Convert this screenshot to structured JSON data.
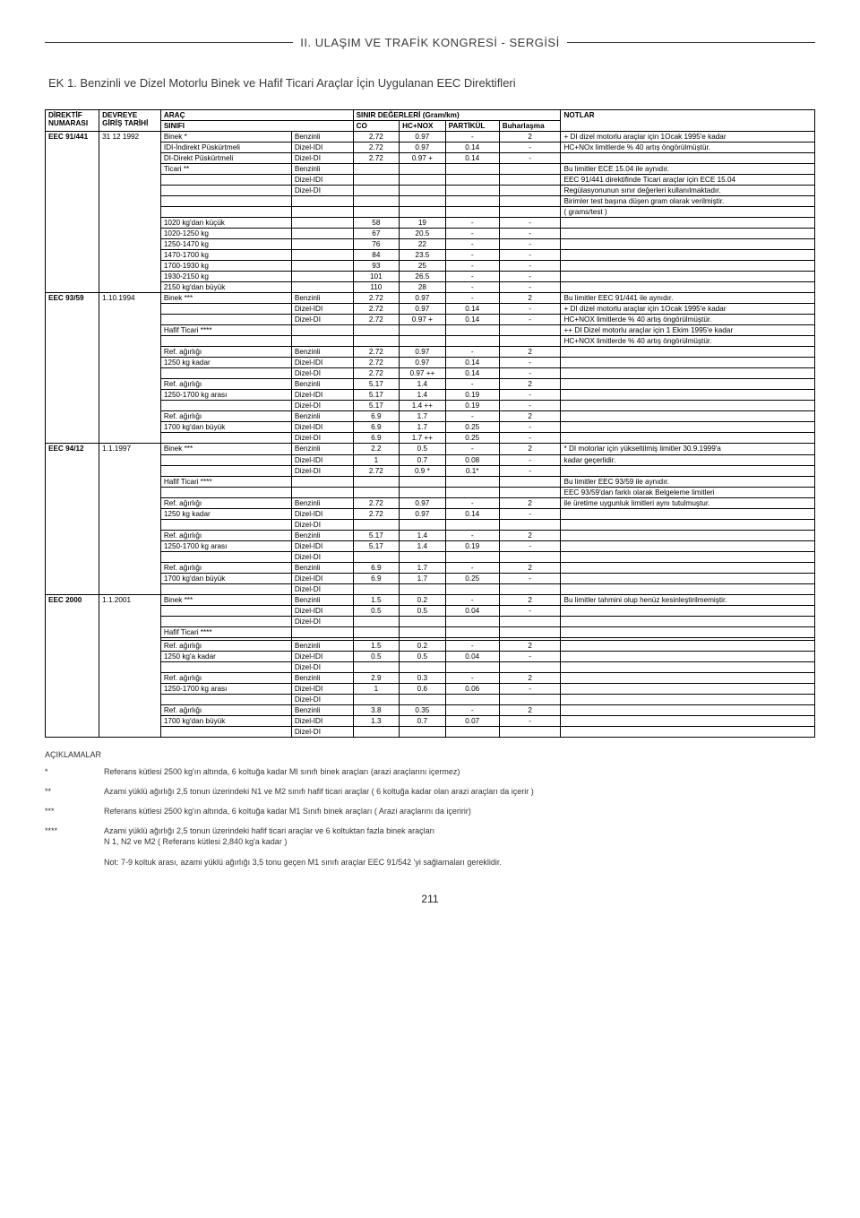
{
  "header": {
    "main": "II. ULAŞIM VE TRAFİK KONGRESİ - SERGİSİ"
  },
  "ek_title": "EK 1. Benzinli ve Dizel Motorlu Binek ve Hafif Ticari Araçlar İçin Uygulanan EEC Direktifleri",
  "columns": {
    "direktif": "DİREKTİF NUMARASI",
    "devreye": "DEVREYE GİRİŞ TARİHİ",
    "arac_sinifi_top": "ARAÇ",
    "arac_sinifi_bot": "SINIFI",
    "sinir_top": "SINIR DEĞERLERİ (Gram/km)",
    "co": "CO",
    "hcnox": "HC+NOX",
    "partikul": "PARTİKÜL",
    "buharlasma": "Buharlaşma",
    "notlar": "NOTLAR"
  },
  "blocks": [
    {
      "direktif": "EEC 91/441",
      "tarih": "31 12 1992",
      "rows": [
        {
          "sinif": "Binek *",
          "fuel": "Benzinli",
          "co": "2.72",
          "hcnox": "0.97",
          "part": "-",
          "buh": "2",
          "not": "+ DI dizel motorlu araçlar için 1Ocak 1995'e kadar"
        },
        {
          "sinif": "IDI-İndirekt Püskürtmeli",
          "fuel": "Dizel-IDI",
          "co": "2.72",
          "hcnox": "0.97",
          "part": "0.14",
          "buh": "-",
          "not": "HC+NOx limitlerde % 40 artış öngörülmüştür."
        },
        {
          "sinif": "DI-Direkt Püskürtmeli",
          "fuel": "Dizel-DI",
          "co": "2.72",
          "hcnox": "0.97 +",
          "part": "0.14",
          "buh": "-",
          "not": ""
        },
        {
          "sinif": "Ticari **",
          "fuel": "Benzinli",
          "co": "",
          "hcnox": "",
          "part": "",
          "buh": "",
          "not": "Bu limitler ECE 15.04 ile aynıdır."
        },
        {
          "sinif": "",
          "fuel": "Dizel-IDI",
          "co": "",
          "hcnox": "",
          "part": "",
          "buh": "",
          "not": "EEC 91/441 direktifinde Ticari araçlar için ECE 15.04"
        },
        {
          "sinif": "",
          "fuel": "Dizel-DI",
          "co": "",
          "hcnox": "",
          "part": "",
          "buh": "",
          "not": "Regülasyonunun sınır değerleri kullanılmaktadır."
        },
        {
          "sinif": "",
          "fuel": "",
          "co": "",
          "hcnox": "",
          "part": "",
          "buh": "",
          "not": "Birimler test başına düşen gram olarak verilmiştir."
        },
        {
          "sinif": "",
          "fuel": "",
          "co": "",
          "hcnox": "",
          "part": "",
          "buh": "",
          "not": "( grams/test )"
        },
        {
          "sinif": "1020 kg'dan küçük",
          "fuel": "",
          "co": "58",
          "hcnox": "19",
          "part": "-",
          "buh": "-",
          "not": ""
        },
        {
          "sinif": "1020-1250 kg",
          "fuel": "",
          "co": "67",
          "hcnox": "20.5",
          "part": "-",
          "buh": "-",
          "not": ""
        },
        {
          "sinif": "1250-1470 kg",
          "fuel": "",
          "co": "76",
          "hcnox": "22",
          "part": "-",
          "buh": "-",
          "not": ""
        },
        {
          "sinif": "1470-1700 kg",
          "fuel": "",
          "co": "84",
          "hcnox": "23.5",
          "part": "-",
          "buh": "-",
          "not": ""
        },
        {
          "sinif": "1700-1930 kg",
          "fuel": "",
          "co": "93",
          "hcnox": "25",
          "part": "-",
          "buh": "-",
          "not": ""
        },
        {
          "sinif": "1930-2150 kg",
          "fuel": "",
          "co": "101",
          "hcnox": "26.5",
          "part": "-",
          "buh": "-",
          "not": ""
        },
        {
          "sinif": "2150 kg'dan büyük",
          "fuel": "",
          "co": "110",
          "hcnox": "28",
          "part": "-",
          "buh": "-",
          "not": ""
        }
      ]
    },
    {
      "direktif": "EEC 93/59",
      "tarih": "1.10.1994",
      "rows": [
        {
          "sinif": "Binek ***",
          "fuel": "Benzinli",
          "co": "2.72",
          "hcnox": "0.97",
          "part": "-",
          "buh": "2",
          "not": "Bu limitler EEC 91/441 ile aynıdır."
        },
        {
          "sinif": "",
          "fuel": "Dizel-IDI",
          "co": "2.72",
          "hcnox": "0.97",
          "part": "0.14",
          "buh": "-",
          "not": "+ DI dizel motorlu araçlar için 1Ocak 1995'e kadar"
        },
        {
          "sinif": "",
          "fuel": "Dizel-DI",
          "co": "2.72",
          "hcnox": "0.97 +",
          "part": "0.14",
          "buh": "-",
          "not": "HC+NOX limitlerde % 40 artış öngörülmüştür."
        },
        {
          "sinif": "Hafif Ticari ****",
          "fuel": "",
          "co": "",
          "hcnox": "",
          "part": "",
          "buh": "",
          "not": "++ DI Dizel motorlu araçlar için 1 Ekim 1995'e kadar"
        },
        {
          "sinif": "",
          "fuel": "",
          "co": "",
          "hcnox": "",
          "part": "",
          "buh": "",
          "not": "HC+NOX limitlerde % 40 artış öngörülmüştür."
        },
        {
          "sinif": "Ref. ağırlığı",
          "fuel": "Benzinli",
          "co": "2.72",
          "hcnox": "0.97",
          "part": "-",
          "buh": "2",
          "not": ""
        },
        {
          "sinif": "1250 kg kadar",
          "fuel": "Dizel-IDI",
          "co": "2.72",
          "hcnox": "0.97",
          "part": "0.14",
          "buh": "-",
          "not": ""
        },
        {
          "sinif": "",
          "fuel": "Dizel-DI",
          "co": "2.72",
          "hcnox": "0.97 ++",
          "part": "0.14",
          "buh": "-",
          "not": ""
        },
        {
          "sinif": "Ref. ağırlığı",
          "fuel": "Benzinli",
          "co": "5.17",
          "hcnox": "1.4",
          "part": "-",
          "buh": "2",
          "not": ""
        },
        {
          "sinif": "1250-1700 kg arası",
          "fuel": "Dizel-IDI",
          "co": "5.17",
          "hcnox": "1.4",
          "part": "0.19",
          "buh": "-",
          "not": ""
        },
        {
          "sinif": "",
          "fuel": "Dizel-DI",
          "co": "5.17",
          "hcnox": "1.4 ++",
          "part": "0.19",
          "buh": "-",
          "not": ""
        },
        {
          "sinif": "Ref. ağırlığı",
          "fuel": "Benzinli",
          "co": "6.9",
          "hcnox": "1.7",
          "part": "-",
          "buh": "2",
          "not": ""
        },
        {
          "sinif": "1700 kg'dan büyük",
          "fuel": "Dizel-IDI",
          "co": "6.9",
          "hcnox": "1.7",
          "part": "0.25",
          "buh": "-",
          "not": ""
        },
        {
          "sinif": "",
          "fuel": "Dizel-DI",
          "co": "6.9",
          "hcnox": "1.7 ++",
          "part": "0.25",
          "buh": "-",
          "not": ""
        }
      ]
    },
    {
      "direktif": "EEC 94/12",
      "tarih": "1.1.1997",
      "rows": [
        {
          "sinif": "Binek ***",
          "fuel": "Benzinli",
          "co": "2.2",
          "hcnox": "0.5",
          "part": "-",
          "buh": "2",
          "not": "* DI motorlar için yükseltilmiş limitler 30.9.1999'a"
        },
        {
          "sinif": "",
          "fuel": "Dizel-IDI",
          "co": "1",
          "hcnox": "0.7",
          "part": "0.08",
          "buh": "-",
          "not": "kadar geçerlidir."
        },
        {
          "sinif": "",
          "fuel": "Dizel-DI",
          "co": "2.72",
          "hcnox": "0.9 *",
          "part": "0.1*",
          "buh": "-",
          "not": ""
        },
        {
          "sinif": "Hafif Ticari ****",
          "fuel": "",
          "co": "",
          "hcnox": "",
          "part": "",
          "buh": "",
          "not": "Bu limitler EEC 93/59 ile aynıdır."
        },
        {
          "sinif": "",
          "fuel": "",
          "co": "",
          "hcnox": "",
          "part": "",
          "buh": "",
          "not": "EEC 93/59'dan farklı olarak Belgeleme limitleri"
        },
        {
          "sinif": "Ref. ağırlığı",
          "fuel": "Benzinli",
          "co": "2.72",
          "hcnox": "0.97",
          "part": "-",
          "buh": "2",
          "not": "ile üretime uygunluk limitleri aynı tutulmuştur."
        },
        {
          "sinif": "1250 kg kadar",
          "fuel": "Dizel-IDI",
          "co": "2.72",
          "hcnox": "0.97",
          "part": "0.14",
          "buh": "-",
          "not": ""
        },
        {
          "sinif": "",
          "fuel": "Dizel-DI",
          "co": "",
          "hcnox": "",
          "part": "",
          "buh": "",
          "not": ""
        },
        {
          "sinif": "Ref. ağırlığı",
          "fuel": "Benzinli",
          "co": "5.17",
          "hcnox": "1.4",
          "part": "-",
          "buh": "2",
          "not": ""
        },
        {
          "sinif": "1250-1700 kg arası",
          "fuel": "Dizel-IDI",
          "co": "5.17",
          "hcnox": "1.4",
          "part": "0.19",
          "buh": "-",
          "not": ""
        },
        {
          "sinif": "",
          "fuel": "Dizel-DI",
          "co": "",
          "hcnox": "",
          "part": "",
          "buh": "",
          "not": ""
        },
        {
          "sinif": "Ref. ağırlığı",
          "fuel": "Benzinli",
          "co": "6.9",
          "hcnox": "1.7",
          "part": "-",
          "buh": "2",
          "not": ""
        },
        {
          "sinif": "1700 kg'dan büyük",
          "fuel": "Dizel-IDI",
          "co": "6.9",
          "hcnox": "1.7",
          "part": "0.25",
          "buh": "-",
          "not": ""
        },
        {
          "sinif": "",
          "fuel": "Dizel-DI",
          "co": "",
          "hcnox": "",
          "part": "",
          "buh": "",
          "not": ""
        }
      ]
    },
    {
      "direktif": "EEC 2000",
      "tarih": "1.1.2001",
      "rows": [
        {
          "sinif": "Binek ***",
          "fuel": "Benzinli",
          "co": "1.5",
          "hcnox": "0.2",
          "part": "-",
          "buh": "2",
          "not": "Bu limitler tahmini olup henüz kesinleştirilmemiştir."
        },
        {
          "sinif": "",
          "fuel": "Dizel-IDI",
          "co": "0.5",
          "hcnox": "0.5",
          "part": "0.04",
          "buh": "-",
          "not": ""
        },
        {
          "sinif": "",
          "fuel": "Dizel-DI",
          "co": "",
          "hcnox": "",
          "part": "",
          "buh": "",
          "not": ""
        },
        {
          "sinif": "Hafif Ticari ****",
          "fuel": "",
          "co": "",
          "hcnox": "",
          "part": "",
          "buh": "",
          "not": ""
        },
        {
          "sinif": "",
          "fuel": "",
          "co": "",
          "hcnox": "",
          "part": "",
          "buh": "",
          "not": ""
        },
        {
          "sinif": "Ref. ağırlığı",
          "fuel": "Benzinli",
          "co": "1.5",
          "hcnox": "0.2",
          "part": "-",
          "buh": "2",
          "not": ""
        },
        {
          "sinif": "1250 kg'a kadar",
          "fuel": "Dizel-IDI",
          "co": "0.5",
          "hcnox": "0.5",
          "part": "0.04",
          "buh": "-",
          "not": ""
        },
        {
          "sinif": "",
          "fuel": "Dizel-DI",
          "co": "",
          "hcnox": "",
          "part": "",
          "buh": "",
          "not": ""
        },
        {
          "sinif": "Ref. ağırlığı",
          "fuel": "Benzinli",
          "co": "2.9",
          "hcnox": "0.3",
          "part": "-",
          "buh": "2",
          "not": ""
        },
        {
          "sinif": "1250-1700 kg arası",
          "fuel": "Dizel-IDI",
          "co": "1",
          "hcnox": "0.6",
          "part": "0.06",
          "buh": "-",
          "not": ""
        },
        {
          "sinif": "",
          "fuel": "Dizel-DI",
          "co": "",
          "hcnox": "",
          "part": "",
          "buh": "",
          "not": ""
        },
        {
          "sinif": "Ref. ağırlığı",
          "fuel": "Benzinli",
          "co": "3.8",
          "hcnox": "0.35",
          "part": "-",
          "buh": "2",
          "not": ""
        },
        {
          "sinif": "1700 kg'dan büyük",
          "fuel": "Dizel-IDI",
          "co": "1.3",
          "hcnox": "0.7",
          "part": "0.07",
          "buh": "-",
          "not": ""
        },
        {
          "sinif": "",
          "fuel": "Dizel-DI",
          "co": "",
          "hcnox": "",
          "part": "",
          "buh": "",
          "not": ""
        }
      ]
    }
  ],
  "notes": {
    "title": "AÇIKLAMALAR",
    "items": [
      {
        "mark": "*",
        "text": "Referans kütlesi 2500 kg'ın altında, 6 koltuğa kadar MI sınıfı binek araçları (arazi araçlarını içermez)"
      },
      {
        "mark": "**",
        "text": "Azami yüklü ağırlığı 2,5 tonun üzerindeki N1 ve M2 sınıfı hafif ticari araçlar ( 6 koltuğa kadar olan arazi araçları da içerir )"
      },
      {
        "mark": "***",
        "text": "Referans kütlesi 2500 kg'ın altında, 6 koltuğa kadar M1 Sınıfı binek araçları ( Arazi araçlarını da içeririr)"
      },
      {
        "mark": "****",
        "text": "Azami yüklü ağırlığı 2,5 tonun üzerindeki hafif ticari araçlar ve 6 koltuktan fazla binek araçları\nN 1, N2 ve M2 ( Referans kütlesi 2,840 kg'a kadar )"
      }
    ],
    "not_line": "Not: 7-9 koltuk arası, azami yüklü ağırlığı 3,5 tonu geçen M1 sınıfı araçlar EEC 91/542 'yi sağlamaları gereklidir."
  },
  "page_number": "211"
}
